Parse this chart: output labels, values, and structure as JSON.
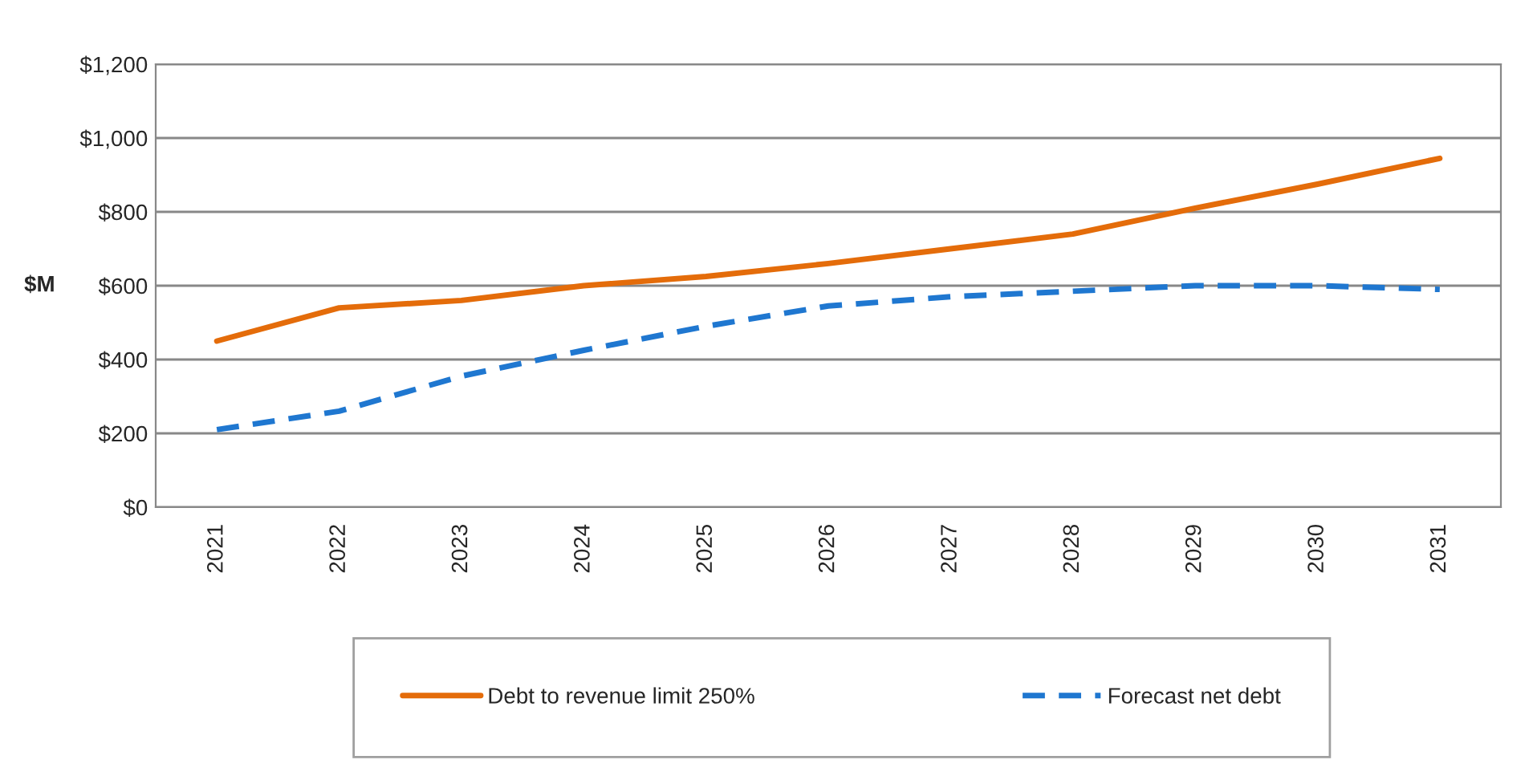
{
  "chart_data": {
    "type": "line",
    "ylabel": "$M",
    "categories": [
      "2021",
      "2022",
      "2023",
      "2024",
      "2025",
      "2026",
      "2027",
      "2028",
      "2029",
      "2030",
      "2031"
    ],
    "series": [
      {
        "name": "Debt to revenue limit 250%",
        "color": "#e46c0a",
        "line_style": "solid",
        "values": [
          450,
          540,
          560,
          600,
          625,
          660,
          700,
          740,
          810,
          875,
          945
        ]
      },
      {
        "name": "Forecast net debt",
        "color": "#1f77d0",
        "line_style": "dashed",
        "values": [
          210,
          260,
          355,
          425,
          490,
          545,
          570,
          585,
          600,
          600,
          590
        ]
      }
    ],
    "ylim": [
      0,
      1200
    ],
    "yticks": [
      {
        "value": 0,
        "label": "$0"
      },
      {
        "value": 200,
        "label": "$200"
      },
      {
        "value": 400,
        "label": "$400"
      },
      {
        "value": 600,
        "label": "$600"
      },
      {
        "value": 800,
        "label": "$800"
      },
      {
        "value": 1000,
        "label": "$1,000"
      },
      {
        "value": 1200,
        "label": "$1,200"
      }
    ],
    "grid": "y",
    "legend": "bottom",
    "marker": "none"
  }
}
